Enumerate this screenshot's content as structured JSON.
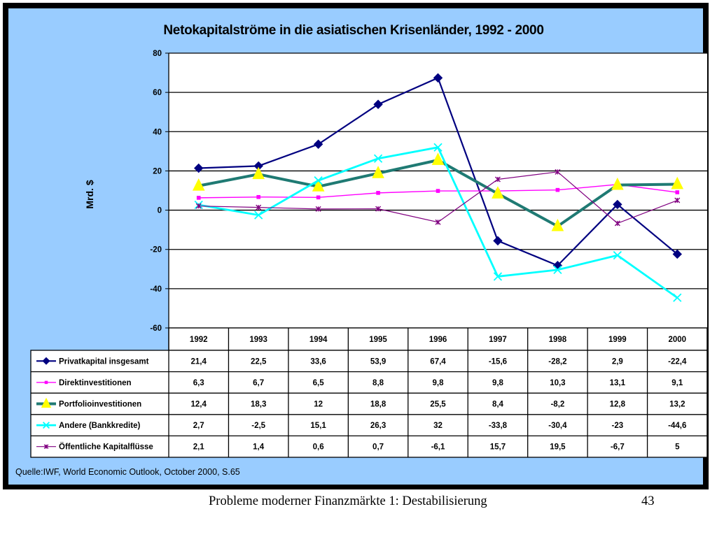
{
  "colors": {
    "panel": "#99ccff",
    "frame": "#000000",
    "plot_bg": "#ffffff"
  },
  "chart_data": {
    "type": "line",
    "title": "Netokapitalströme in die asiatischen Krisenländer, 1992 - 2000",
    "ylabel": "Mrd. $",
    "xlabel": "",
    "ylim": [
      -60,
      80
    ],
    "yticks": [
      80,
      60,
      40,
      20,
      0,
      -20,
      -40,
      -60
    ],
    "grid": true,
    "legend": "table-below",
    "categories": [
      "1992",
      "1993",
      "1994",
      "1995",
      "1996",
      "1997",
      "1998",
      "1999",
      "2000"
    ],
    "series": [
      {
        "name": "Privatkapital insgesamt",
        "color": "#000080",
        "marker": "diamond",
        "values": [
          21.4,
          22.5,
          33.6,
          53.9,
          67.4,
          -15.6,
          -28.2,
          2.9,
          -22.4
        ],
        "labels": [
          "21,4",
          "22,5",
          "33,6",
          "53,9",
          "67,4",
          "-15,6",
          "-28,2",
          "2,9",
          "-22,4"
        ]
      },
      {
        "name": "Direktinvestitionen",
        "color": "#ff00ff",
        "marker": "square",
        "values": [
          6.3,
          6.7,
          6.5,
          8.8,
          9.8,
          9.8,
          10.3,
          13.1,
          9.1
        ],
        "labels": [
          "6,3",
          "6,7",
          "6,5",
          "8,8",
          "9,8",
          "9,8",
          "10,3",
          "13,1",
          "9,1"
        ]
      },
      {
        "name": "Portfolioinvestitionen",
        "color": "#1f7a73",
        "marker": "triangle",
        "values": [
          12.4,
          18.3,
          12,
          18.8,
          25.5,
          8.4,
          -8.2,
          12.8,
          13.2
        ],
        "labels": [
          "12,4",
          "18,3",
          "12",
          "18,8",
          "25,5",
          "8,4",
          "-8,2",
          "12,8",
          "13,2"
        ]
      },
      {
        "name": "Andere (Bankkredite)",
        "color": "#00ffff",
        "marker": "x",
        "values": [
          2.7,
          -2.5,
          15.1,
          26.3,
          32,
          -33.8,
          -30.4,
          -23,
          -44.6
        ],
        "labels": [
          "2,7",
          "-2,5",
          "15,1",
          "26,3",
          "32",
          "-33,8",
          "-30,4",
          "-23",
          "-44,6"
        ]
      },
      {
        "name": "Öffentliche Kapitalflüsse",
        "color": "#800080",
        "marker": "star",
        "values": [
          2.1,
          1.4,
          0.6,
          0.7,
          -6.1,
          15.7,
          19.5,
          -6.7,
          5
        ],
        "labels": [
          "2,1",
          "1,4",
          "0,6",
          "0,7",
          "-6,1",
          "15,7",
          "19,5",
          "-6,7",
          "5"
        ]
      }
    ]
  },
  "source": "Quelle:IWF, World Economic Outlook, October 2000, S.65",
  "footer": {
    "left": "Probleme moderner Finanzmärkte 1: Destabilisierung",
    "page": "43"
  }
}
